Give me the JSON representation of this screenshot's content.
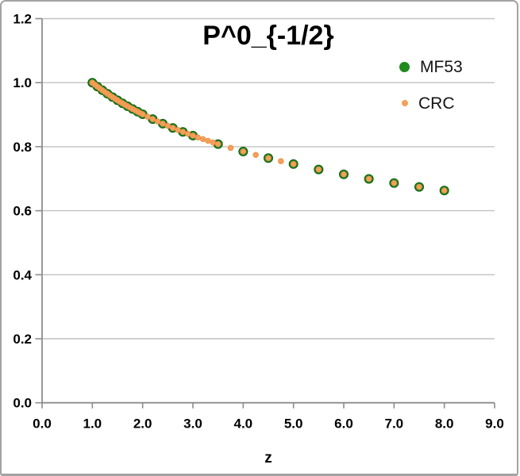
{
  "chart": {
    "title": "P^0_{-1/2}",
    "x_axis_title": "z",
    "legend_items": [
      "MF53",
      "CRC"
    ]
  },
  "colors": {
    "mf53_fill": "#1f8a1f",
    "mf53_edge": "#0f5c12",
    "crc_fill": "#f5a05a",
    "crc_edge": "#ec914a",
    "gridline": "#c2c2c2",
    "axis": "#8c8c8c",
    "tick_label": "#000000",
    "frame_border": "#a3a3a3",
    "background": "#ffffff"
  },
  "chart_data": {
    "type": "scatter",
    "title": "P^0_{-1/2}",
    "xlabel": "z",
    "ylabel": "",
    "xlim": [
      0,
      9
    ],
    "ylim": [
      0,
      1.2
    ],
    "xticks": [
      "0.0",
      "1.0",
      "2.0",
      "3.0",
      "4.0",
      "5.0",
      "6.0",
      "7.0",
      "8.0",
      "9.0"
    ],
    "yticks": [
      "0.0",
      "0.2",
      "0.4",
      "0.6",
      "0.8",
      "1.0",
      "1.2"
    ],
    "grid": true,
    "legend_position": "upper right",
    "series": [
      {
        "name": "MF53",
        "marker": "circle",
        "size": 11,
        "color": "#1f8a1f",
        "edge_color": "#0f5c12",
        "x": [
          1.0,
          1.1,
          1.2,
          1.3,
          1.4,
          1.5,
          1.6,
          1.7,
          1.8,
          1.9,
          2.0,
          2.2,
          2.4,
          2.6,
          2.8,
          3.0,
          3.5,
          4.0,
          4.5,
          5.0,
          5.5,
          6.0,
          6.5,
          7.0,
          7.5,
          8.0
        ],
        "y": [
          1.0,
          0.9878,
          0.9763,
          0.9654,
          0.955,
          0.945,
          0.9355,
          0.9264,
          0.9177,
          0.9093,
          0.9013,
          0.8861,
          0.8719,
          0.8587,
          0.8463,
          0.8346,
          0.8082,
          0.785,
          0.7643,
          0.7457,
          0.7289,
          0.7136,
          0.6995,
          0.6864,
          0.6744,
          0.6631
        ]
      },
      {
        "name": "CRC",
        "marker": "circle",
        "size": 6.5,
        "color": "#f5a05a",
        "edge_color": "#ec914a",
        "x": [
          1.0,
          1.05,
          1.1,
          1.15,
          1.2,
          1.25,
          1.3,
          1.35,
          1.4,
          1.45,
          1.5,
          1.55,
          1.6,
          1.65,
          1.7,
          1.75,
          1.8,
          1.85,
          1.9,
          1.95,
          2.0,
          2.1,
          2.2,
          2.3,
          2.4,
          2.5,
          2.6,
          2.7,
          2.8,
          2.9,
          3.0,
          3.1,
          3.2,
          3.3,
          3.4,
          3.5,
          3.75,
          4.0,
          4.25,
          4.5,
          4.75,
          5.0,
          5.5,
          6.0,
          6.5,
          7.0,
          7.5,
          8.0
        ],
        "y": [
          1.0,
          0.9938,
          0.9878,
          0.982,
          0.9763,
          0.9708,
          0.9654,
          0.9601,
          0.955,
          0.9499,
          0.945,
          0.9402,
          0.9355,
          0.9309,
          0.9264,
          0.922,
          0.9177,
          0.9135,
          0.9093,
          0.9053,
          0.9013,
          0.8935,
          0.8861,
          0.8789,
          0.8719,
          0.8652,
          0.8587,
          0.8524,
          0.8463,
          0.8404,
          0.8346,
          0.829,
          0.8236,
          0.8183,
          0.8132,
          0.8082,
          0.7962,
          0.785,
          0.7744,
          0.7643,
          0.7547,
          0.7457,
          0.7289,
          0.7136,
          0.6995,
          0.6864,
          0.6744,
          0.6631
        ]
      }
    ]
  }
}
